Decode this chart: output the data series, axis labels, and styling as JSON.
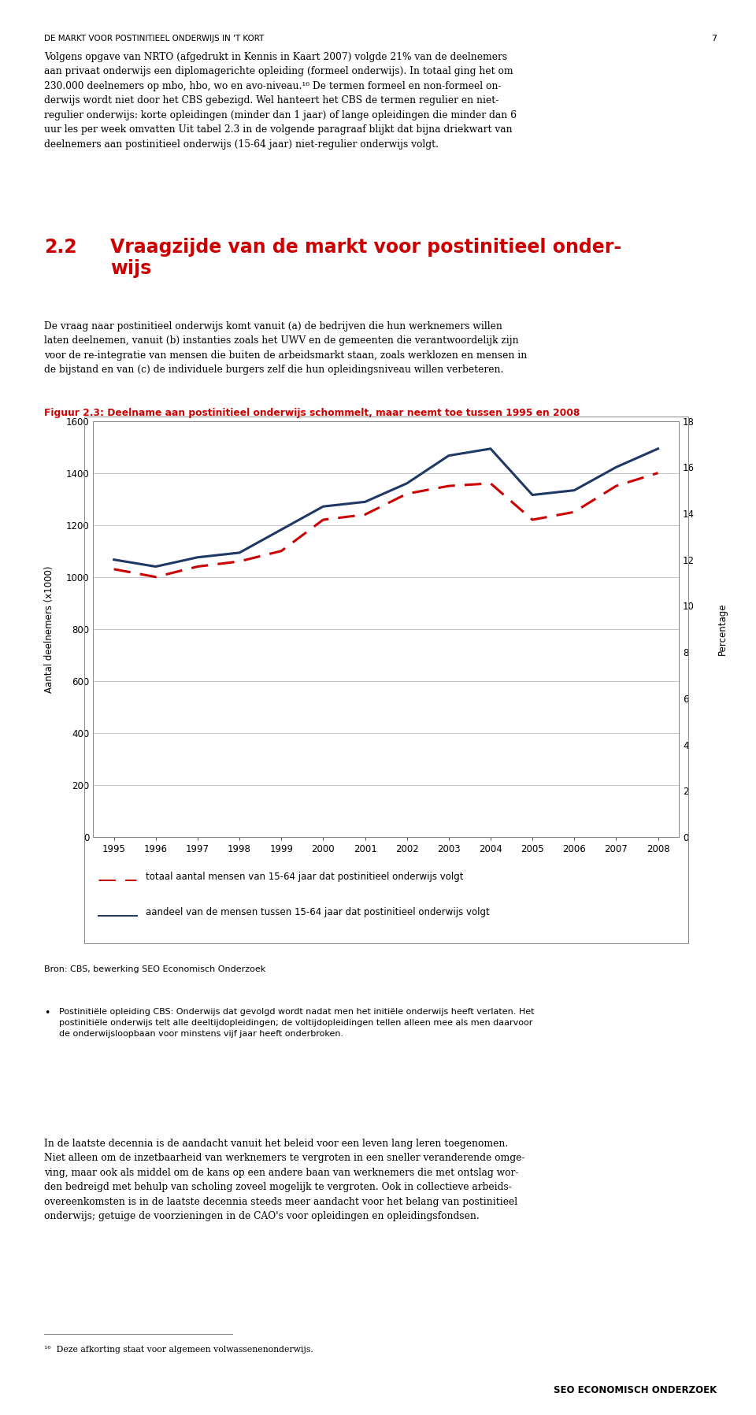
{
  "title": "Figuur 2.3: Deelname aan postinitieel onderwijs schommelt, maar neemt toe tussen 1995 en 2008",
  "title_color": "#CC0000",
  "ylabel_left": "Aantal deelnemers (x1000)",
  "ylabel_right": "Percentage",
  "years": [
    1995,
    1996,
    1997,
    1998,
    1999,
    2000,
    2001,
    2002,
    2003,
    2004,
    2005,
    2006,
    2007,
    2008
  ],
  "participants": [
    1030,
    1000,
    1040,
    1060,
    1100,
    1220,
    1240,
    1320,
    1350,
    1360,
    1220,
    1250,
    1350,
    1400
  ],
  "percentage": [
    12.0,
    11.7,
    12.1,
    12.3,
    13.3,
    14.3,
    14.5,
    15.3,
    16.5,
    16.8,
    14.8,
    15.0,
    16.0,
    16.8
  ],
  "participants_color": "#CC0000",
  "percentage_color": "#1F3864",
  "ylim_left": [
    0,
    1600
  ],
  "ylim_right": [
    0,
    18
  ],
  "yticks_left": [
    0,
    200,
    400,
    600,
    800,
    1000,
    1200,
    1400,
    1600
  ],
  "yticks_right": [
    0,
    2,
    4,
    6,
    8,
    10,
    12,
    14,
    16,
    18
  ],
  "legend_dashed_label": "totaal aantal mensen van 15-64 jaar dat postinitieel onderwijs volgt",
  "legend_solid_label": "aandeel van de mensen tussen 15-64 jaar dat postinitieel onderwijs volgt",
  "bg_color": "#FFFFFF",
  "grid_color": "#AAAAAA",
  "header_text": "DE MARKT VOOR POSTINITIEEL ONDERWIJS IN 'T KORT",
  "page_number": "7",
  "source_text": "Bron: CBS, bewerking SEO Economisch Onderzoek",
  "footnote_cbs": "Postinitiële opleiding CBS: Onderwijs dat gevolgd wordt nadat men het initiële onderwijs heeft verlaten. Het postinitiële onderwijs telt alle deeltijdopleidingen; de voltijdopleidingen tellen alleen mee als men daarvoor de onderwijsloopbaan voor minstens vijf jaar heeft onderbroken.",
  "footnote_16_text": "Deze afkorting staat voor algemeen volwassenenonderwijs.",
  "seo_footer": "SEO ECONOMISCH ONDERZOEK"
}
